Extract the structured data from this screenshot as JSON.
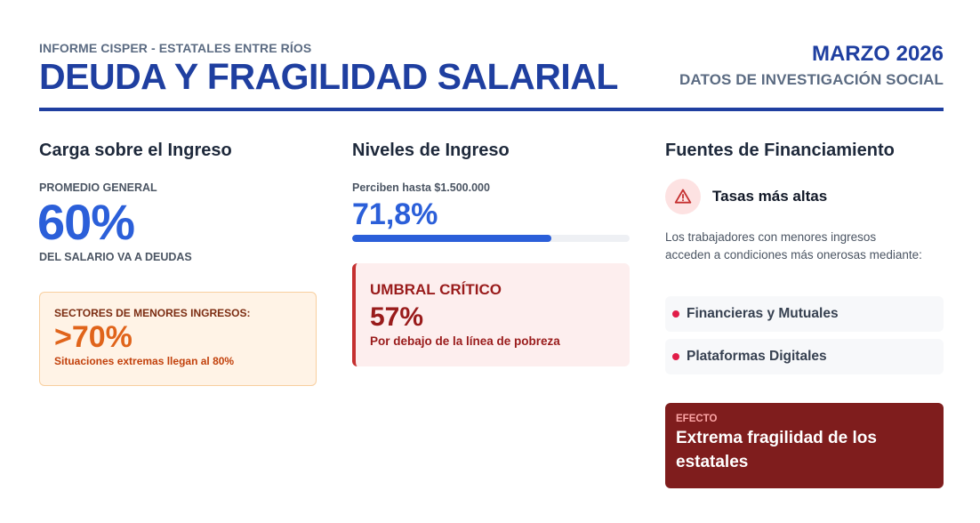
{
  "header": {
    "eyebrow": "INFORME CISPER - ESTATALES ENTRE RÍOS",
    "title": "DEUDA Y FRAGILIDAD SALARIAL",
    "date": "MARZO 2026",
    "subtitle": "DATOS DE INVESTIGACIÓN SOCIAL"
  },
  "carga": {
    "title": "Carga sobre el Ingreso",
    "kicker": "PROMEDIO GENERAL",
    "value": "60%",
    "caption": "DEL SALARIO VA A DEUDAS",
    "highlight": {
      "kicker": "SECTORES DE MENORES INGRESOS:",
      "value": ">70%",
      "note": "Situaciones extremas llegan al 80%"
    }
  },
  "ingreso": {
    "title": "Niveles de Ingreso",
    "kicker": "Perciben hasta $1.500.000",
    "value": "71,8%",
    "progress_percent": 71.8,
    "critical": {
      "title": "UMBRAL CRÍTICO",
      "value": "57%",
      "note": "Por debajo de la línea de pobreza"
    }
  },
  "fuentes": {
    "title": "Fuentes de Financiamiento",
    "alert_icon": "warning-triangle-icon",
    "alert_label": "Tasas más altas",
    "description": "Los trabajadores con menores ingresos acceden a condiciones más onerosas mediante:",
    "items": [
      {
        "label": "Financieras y Mutuales"
      },
      {
        "label": "Plataformas Digitales"
      }
    ],
    "effect": {
      "kicker": "EFECTO",
      "text": "Extrema fragilidad de los estatales"
    }
  },
  "colors": {
    "brand_blue": "#1f3fa0",
    "accent_blue": "#2b5fd9",
    "warning_orange": "#e0641b",
    "critical_red": "#991b1b",
    "effect_bg": "#7f1d1d"
  }
}
